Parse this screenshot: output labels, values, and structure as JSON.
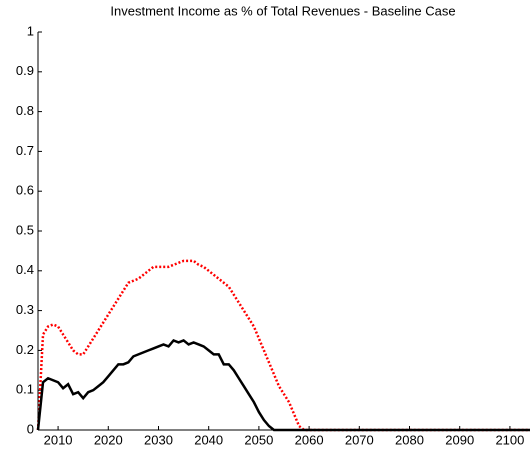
{
  "chart_data": {
    "type": "line",
    "title": "Investment Income as % of Total Revenues - Baseline Case",
    "x": [
      2006,
      2007,
      2008,
      2009,
      2010,
      2011,
      2012,
      2013,
      2014,
      2015,
      2016,
      2017,
      2018,
      2019,
      2020,
      2021,
      2022,
      2023,
      2024,
      2025,
      2026,
      2027,
      2028,
      2029,
      2030,
      2031,
      2032,
      2033,
      2034,
      2035,
      2036,
      2037,
      2038,
      2039,
      2040,
      2041,
      2042,
      2043,
      2044,
      2045,
      2046,
      2047,
      2048,
      2049,
      2050,
      2051,
      2052,
      2053,
      2054,
      2055,
      2056,
      2057,
      2058,
      2059,
      2060,
      2070,
      2080,
      2090,
      2100,
      2104
    ],
    "series": [
      {
        "color": "#ff0000",
        "dash": true,
        "values": [
          0,
          0.24,
          0.26,
          0.265,
          0.26,
          0.24,
          0.22,
          0.2,
          0.19,
          0.19,
          0.21,
          0.23,
          0.25,
          0.27,
          0.29,
          0.31,
          0.33,
          0.35,
          0.37,
          0.375,
          0.38,
          0.39,
          0.4,
          0.41,
          0.41,
          0.41,
          0.41,
          0.415,
          0.42,
          0.425,
          0.425,
          0.425,
          0.415,
          0.41,
          0.4,
          0.39,
          0.38,
          0.37,
          0.36,
          0.34,
          0.32,
          0.3,
          0.28,
          0.26,
          0.23,
          0.2,
          0.17,
          0.14,
          0.11,
          0.09,
          0.07,
          0.04,
          0.01,
          0,
          0,
          0,
          0,
          0,
          0,
          0
        ]
      },
      {
        "color": "#000000",
        "dash": false,
        "values": [
          0,
          0.12,
          0.13,
          0.125,
          0.12,
          0.105,
          0.115,
          0.09,
          0.095,
          0.08,
          0.095,
          0.1,
          0.11,
          0.12,
          0.135,
          0.15,
          0.165,
          0.165,
          0.17,
          0.185,
          0.19,
          0.195,
          0.2,
          0.205,
          0.21,
          0.215,
          0.21,
          0.225,
          0.22,
          0.225,
          0.215,
          0.22,
          0.215,
          0.21,
          0.2,
          0.19,
          0.19,
          0.165,
          0.165,
          0.15,
          0.13,
          0.11,
          0.09,
          0.07,
          0.045,
          0.025,
          0.01,
          0,
          0,
          0,
          0,
          0,
          0,
          0,
          0,
          0,
          0,
          0,
          0,
          0
        ]
      }
    ],
    "xlim": [
      2006,
      2104
    ],
    "xticks": [
      2010,
      2020,
      2030,
      2040,
      2050,
      2060,
      2070,
      2080,
      2090,
      2100
    ],
    "ylim": [
      0,
      1
    ],
    "yticks": [
      0,
      0.1,
      0.2,
      0.3,
      0.4,
      0.5,
      0.6,
      0.7,
      0.8,
      0.9,
      1
    ]
  }
}
